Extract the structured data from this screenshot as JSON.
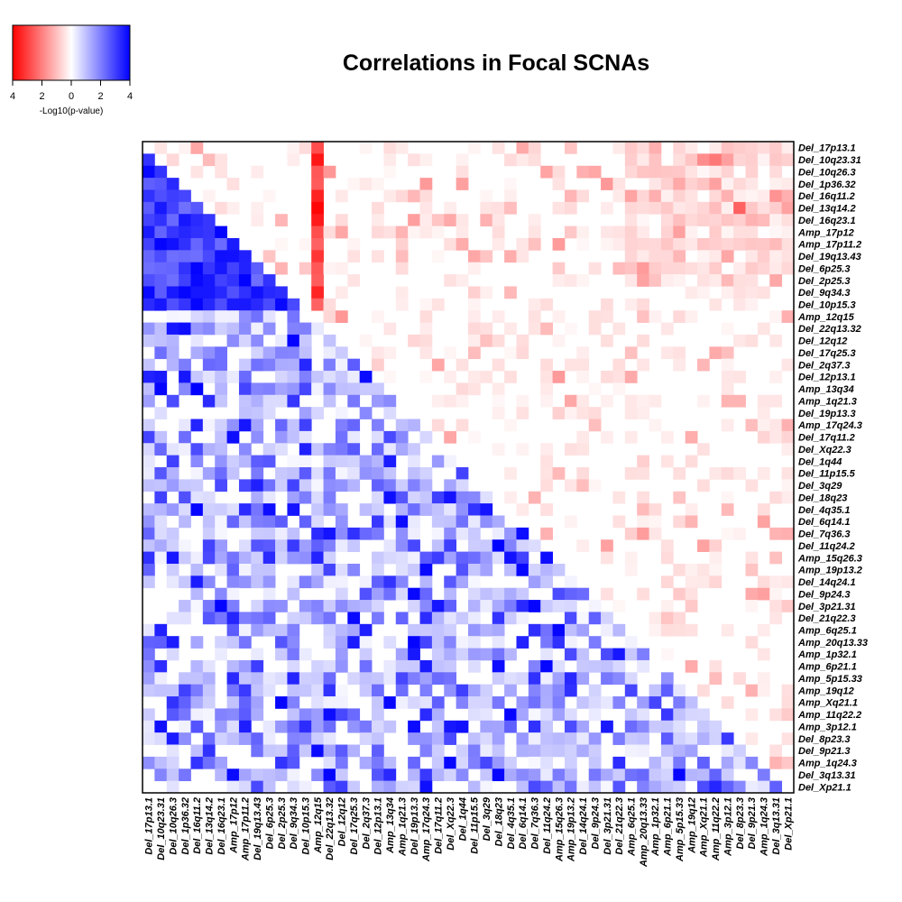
{
  "chart_data": {
    "type": "heatmap",
    "title": "Correlations in Focal SCNAs",
    "labels": [
      "Del_17p13.1",
      "Del_10q23.31",
      "Del_10q26.3",
      "Del_1p36.32",
      "Del_16q11.2",
      "Del_13q14.2",
      "Del_16q23.1",
      "Amp_17p12",
      "Amp_17p11.2",
      "Del_19q13.43",
      "Del_6p25.3",
      "Del_2p25.3",
      "Del_9q34.3",
      "Del_10p15.3",
      "Amp_12q15",
      "Del_22q13.32",
      "Del_12q12",
      "Del_17q25.3",
      "Del_2q37.3",
      "Del_12p13.1",
      "Amp_13q34",
      "Amp_1q21.3",
      "Del_19p13.3",
      "Amp_17q24.3",
      "Del_17q11.2",
      "Del_Xq22.3",
      "Del_1q44",
      "Del_11p15.5",
      "Del_3q29",
      "Del_18q23",
      "Del_4q35.1",
      "Del_6q14.1",
      "Del_7q36.3",
      "Del_11q24.2",
      "Amp_15q26.3",
      "Amp_19p13.2",
      "Del_14q24.1",
      "Del_9p24.3",
      "Del_3p21.31",
      "Del_21q22.3",
      "Amp_6q25.1",
      "Amp_20q13.33",
      "Amp_1p32.1",
      "Amp_6p21.1",
      "Amp_5p15.33",
      "Amp_19q12",
      "Amp_Xq21.1",
      "Amp_11q22.2",
      "Amp_3p12.1",
      "Del_8p23.3",
      "Del_9p21.3",
      "Amp_1q24.3",
      "Del_3q13.31",
      "Del_Xp21.1"
    ],
    "lower_triangle": "blue = positive correlation (-log10 p-value)",
    "upper_triangle": "red = anti-correlation (-log10 p-value)",
    "color_scale": {
      "ticks": [
        "4",
        "2",
        "0",
        "2",
        "4"
      ],
      "label": "-Log10(p-value)",
      "range": [
        -4,
        4
      ],
      "negative_color": "#ff0000",
      "zero_color": "#ffffff",
      "positive_color": "#0000ff"
    },
    "seed": 20240511
  }
}
